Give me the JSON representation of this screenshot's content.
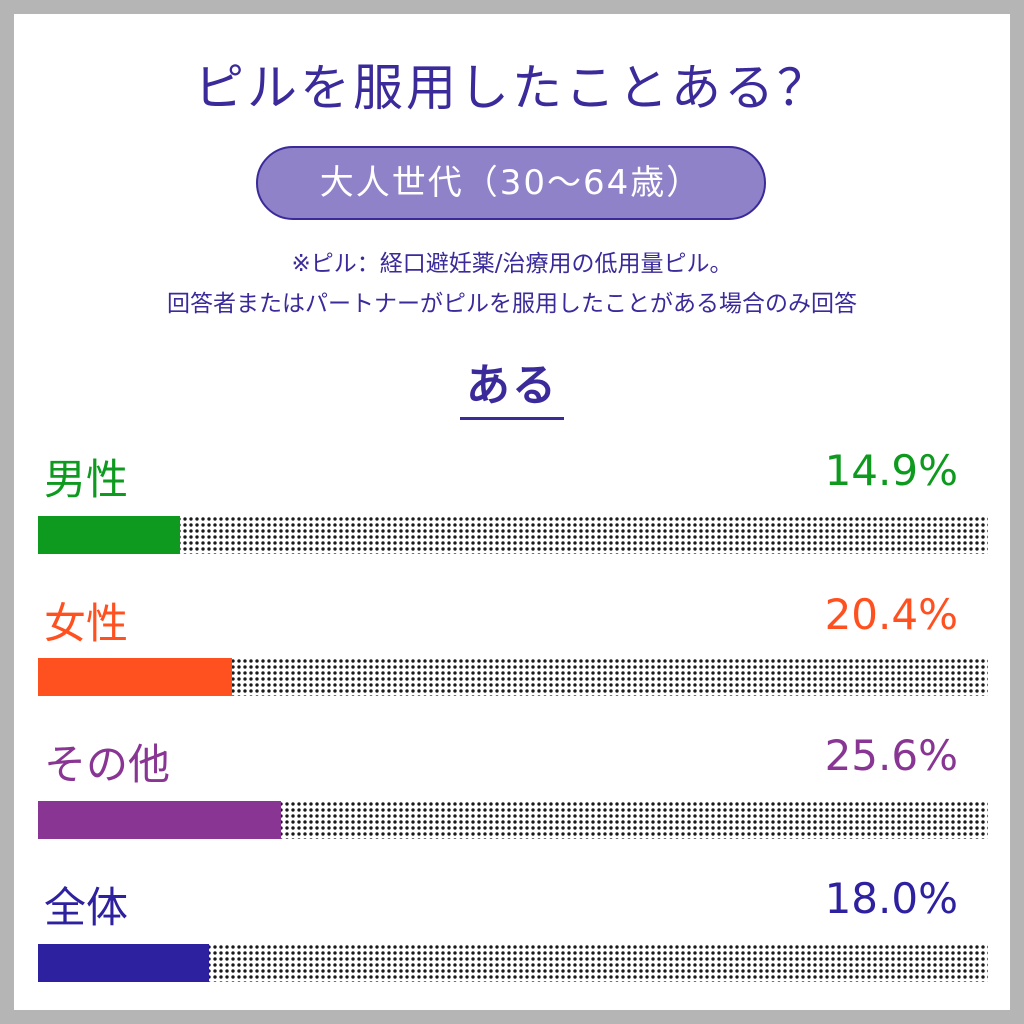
{
  "chart_data": {
    "type": "bar",
    "title": "ピルを服用したことある？",
    "subtitle": "大人世代（30〜64歳）",
    "notes": [
      "※ピル：経口避妊薬/治療用の低用量ピル。",
      "回答者またはパートナーがピルを服用したことがある場合のみ回答"
    ],
    "answer_label": "ある",
    "categories": [
      "男性",
      "女性",
      "その他",
      "全体"
    ],
    "values": [
      14.9,
      20.4,
      25.6,
      18.0
    ],
    "value_labels": [
      "14.9%",
      "20.4%",
      "25.6%",
      "18.0%"
    ],
    "colors": [
      "#0e9a1e",
      "#ff5020",
      "#883593",
      "#2e21a0"
    ],
    "ylim": [
      0,
      100
    ]
  }
}
